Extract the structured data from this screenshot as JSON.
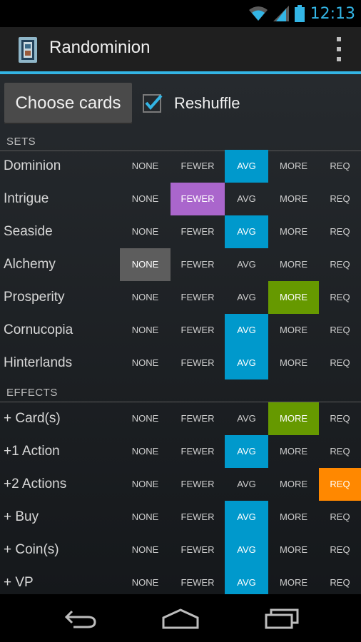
{
  "status": {
    "time": "12:13"
  },
  "app": {
    "title": "Randominion"
  },
  "toolbar": {
    "choose_label": "Choose cards",
    "reshuffle_label": "Reshuffle",
    "reshuffle_checked": true
  },
  "options": [
    "NONE",
    "FEWER",
    "AVG",
    "MORE",
    "REQ"
  ],
  "sets": {
    "header": "SETS",
    "rows": [
      {
        "label": "Dominion",
        "selected": "AVG"
      },
      {
        "label": "Intrigue",
        "selected": "FEWER"
      },
      {
        "label": "Seaside",
        "selected": "AVG"
      },
      {
        "label": "Alchemy",
        "selected": "NONE"
      },
      {
        "label": "Prosperity",
        "selected": "MORE"
      },
      {
        "label": "Cornucopia",
        "selected": "AVG"
      },
      {
        "label": "Hinterlands",
        "selected": "AVG"
      }
    ]
  },
  "effects": {
    "header": "EFFECTS",
    "rows": [
      {
        "label": "+ Card(s)",
        "selected": "MORE"
      },
      {
        "label": "+1 Action",
        "selected": "AVG"
      },
      {
        "label": "+2 Actions",
        "selected": "REQ"
      },
      {
        "label": "+ Buy",
        "selected": "AVG"
      },
      {
        "label": "+ Coin(s)",
        "selected": "AVG"
      },
      {
        "label": "+ VP",
        "selected": "AVG"
      }
    ]
  },
  "colors": {
    "accent": "#33b5e5",
    "none": "#5d5d5d",
    "fewer": "#aa66cc",
    "avg": "#0099cc",
    "more": "#669900",
    "req": "#ff8800"
  },
  "icons": [
    "wifi-icon",
    "signal-icon",
    "battery-icon",
    "overflow-menu-icon",
    "back-icon",
    "home-icon",
    "recents-icon"
  ]
}
